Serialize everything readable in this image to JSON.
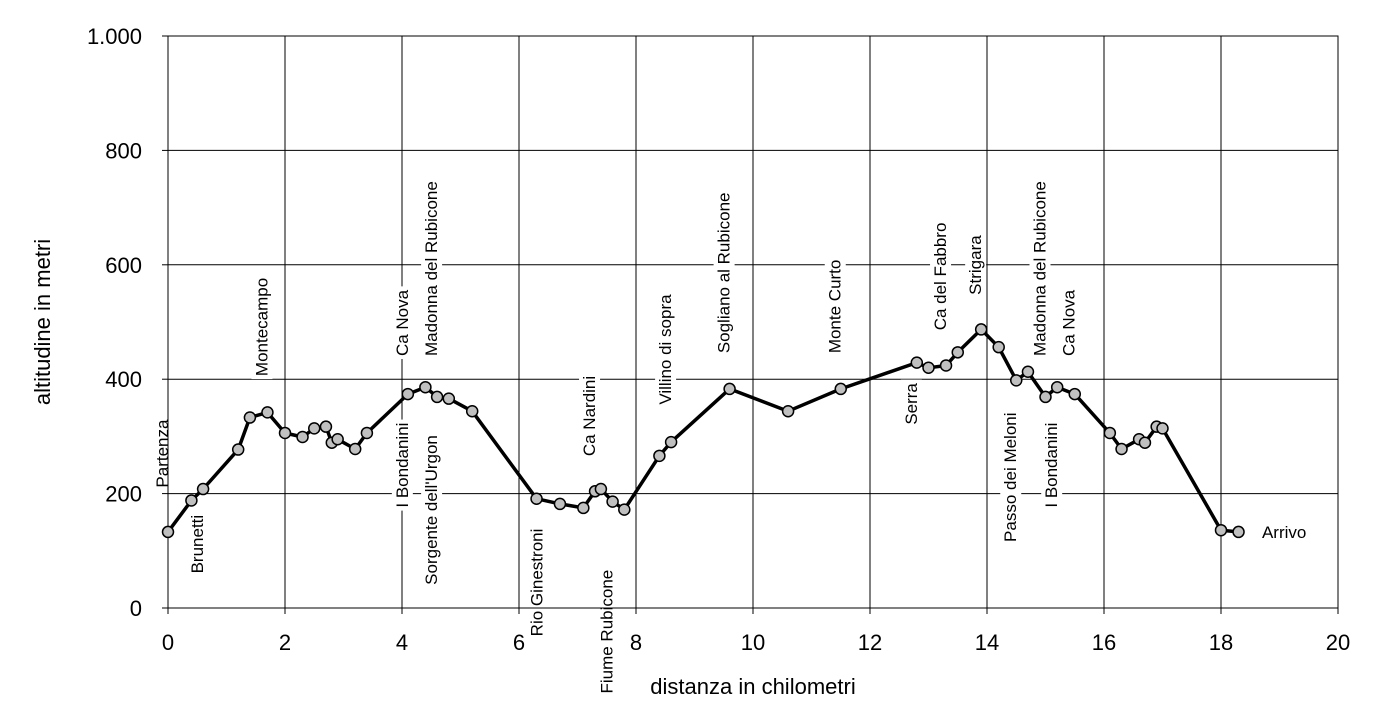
{
  "chart_data": {
    "type": "line",
    "xlabel": "distanza in chilometri",
    "ylabel": "altitudine  in metri",
    "xlim": [
      0,
      20
    ],
    "ylim": [
      0,
      1000
    ],
    "grid": true,
    "xticks": [
      0,
      2,
      4,
      6,
      8,
      10,
      12,
      14,
      16,
      18,
      20
    ],
    "xtick_labels": [
      "0",
      "2",
      "4",
      "6",
      "8",
      "10",
      "12",
      "14",
      "16",
      "18",
      "20"
    ],
    "yticks": [
      0,
      200,
      400,
      600,
      800,
      1000
    ],
    "ytick_labels": [
      "0",
      "200",
      "400",
      "600",
      "800",
      "1.000"
    ],
    "points": [
      {
        "x": 0.0,
        "y": 133
      },
      {
        "x": 0.4,
        "y": 188
      },
      {
        "x": 0.6,
        "y": 208
      },
      {
        "x": 1.2,
        "y": 277
      },
      {
        "x": 1.4,
        "y": 333
      },
      {
        "x": 1.7,
        "y": 342
      },
      {
        "x": 2.0,
        "y": 306
      },
      {
        "x": 2.3,
        "y": 299
      },
      {
        "x": 2.5,
        "y": 314
      },
      {
        "x": 2.7,
        "y": 317
      },
      {
        "x": 2.8,
        "y": 289
      },
      {
        "x": 2.9,
        "y": 295
      },
      {
        "x": 3.2,
        "y": 278
      },
      {
        "x": 3.4,
        "y": 306
      },
      {
        "x": 4.1,
        "y": 374
      },
      {
        "x": 4.4,
        "y": 386
      },
      {
        "x": 4.6,
        "y": 369
      },
      {
        "x": 4.8,
        "y": 366
      },
      {
        "x": 5.2,
        "y": 344
      },
      {
        "x": 6.3,
        "y": 191
      },
      {
        "x": 6.7,
        "y": 182
      },
      {
        "x": 7.1,
        "y": 175
      },
      {
        "x": 7.3,
        "y": 204
      },
      {
        "x": 7.4,
        "y": 208
      },
      {
        "x": 7.6,
        "y": 186
      },
      {
        "x": 7.8,
        "y": 172
      },
      {
        "x": 8.4,
        "y": 266
      },
      {
        "x": 8.6,
        "y": 290
      },
      {
        "x": 9.6,
        "y": 383
      },
      {
        "x": 10.6,
        "y": 344
      },
      {
        "x": 11.5,
        "y": 383
      },
      {
        "x": 12.8,
        "y": 429
      },
      {
        "x": 13.0,
        "y": 420
      },
      {
        "x": 13.3,
        "y": 424
      },
      {
        "x": 13.5,
        "y": 447
      },
      {
        "x": 13.9,
        "y": 487
      },
      {
        "x": 14.2,
        "y": 456
      },
      {
        "x": 14.5,
        "y": 398
      },
      {
        "x": 14.7,
        "y": 413
      },
      {
        "x": 15.0,
        "y": 369
      },
      {
        "x": 15.2,
        "y": 386
      },
      {
        "x": 15.5,
        "y": 374
      },
      {
        "x": 16.1,
        "y": 306
      },
      {
        "x": 16.3,
        "y": 278
      },
      {
        "x": 16.6,
        "y": 295
      },
      {
        "x": 16.7,
        "y": 289
      },
      {
        "x": 16.9,
        "y": 317
      },
      {
        "x": 17.0,
        "y": 314
      },
      {
        "x": 18.0,
        "y": 136
      },
      {
        "x": 18.3,
        "y": 133
      }
    ],
    "annotations": [
      {
        "text": "Partenza",
        "x": 0.0,
        "y": 200,
        "vertical": true,
        "anchor": "start"
      },
      {
        "text": "Brunetti",
        "x": 0.6,
        "y": 50,
        "vertical": true,
        "anchor": "start"
      },
      {
        "text": "Montecampo",
        "x": 1.7,
        "y": 395,
        "vertical": true,
        "anchor": "start"
      },
      {
        "text": "Ca Nova",
        "x": 4.1,
        "y": 430,
        "vertical": true,
        "anchor": "start"
      },
      {
        "text": "I Bondanini",
        "x": 4.1,
        "y": 165,
        "vertical": true,
        "anchor": "start"
      },
      {
        "text": "Madonna del Rubicone",
        "x": 4.6,
        "y": 430,
        "vertical": true,
        "anchor": "start"
      },
      {
        "text": "Sorgente dell'Urgon",
        "x": 4.6,
        "y": 30,
        "vertical": true,
        "anchor": "start"
      },
      {
        "text": "Rio Ginestroni",
        "x": 6.4,
        "y": -60,
        "vertical": true,
        "anchor": "start"
      },
      {
        "text": "Ca Nardini",
        "x": 7.3,
        "y": 255,
        "vertical": true,
        "anchor": "start"
      },
      {
        "text": "Fiume Rubicone",
        "x": 7.6,
        "y": -160,
        "vertical": true,
        "anchor": "start"
      },
      {
        "text": "Villino di sopra",
        "x": 8.6,
        "y": 345,
        "vertical": true,
        "anchor": "start"
      },
      {
        "text": "Sogliano al Rubicone",
        "x": 9.6,
        "y": 435,
        "vertical": true,
        "anchor": "start"
      },
      {
        "text": "Monte Curto",
        "x": 11.5,
        "y": 435,
        "vertical": true,
        "anchor": "start"
      },
      {
        "text": "Serra",
        "x": 12.8,
        "y": 310,
        "vertical": true,
        "anchor": "start"
      },
      {
        "text": "Ca del Fabbro",
        "x": 13.3,
        "y": 475,
        "vertical": true,
        "anchor": "start"
      },
      {
        "text": "Strigara",
        "x": 13.9,
        "y": 537,
        "vertical": true,
        "anchor": "start"
      },
      {
        "text": "Passo dei Meloni",
        "x": 14.5,
        "y": 105,
        "vertical": true,
        "anchor": "start"
      },
      {
        "text": "I Bondanini",
        "x": 15.2,
        "y": 165,
        "vertical": true,
        "anchor": "start"
      },
      {
        "text": "Madonna del Rubicone",
        "x": 15.0,
        "y": 430,
        "vertical": true,
        "anchor": "start"
      },
      {
        "text": "Ca Nova",
        "x": 15.5,
        "y": 430,
        "vertical": true,
        "anchor": "start"
      },
      {
        "text": "Arrivo",
        "x": 18.7,
        "y": 133,
        "vertical": false,
        "anchor": "start"
      }
    ]
  }
}
